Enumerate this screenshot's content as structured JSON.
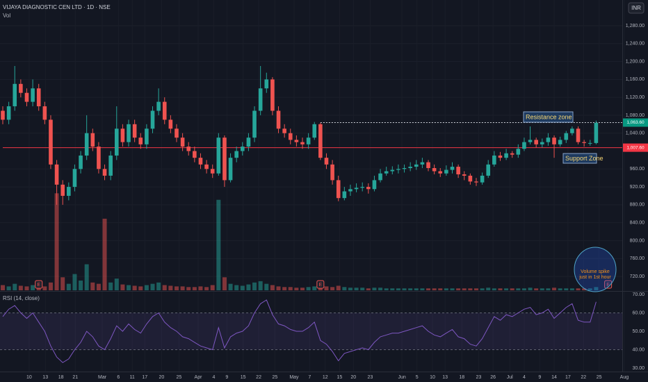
{
  "header": {
    "symbol": "VIJAYA DIAGNOSTIC CEN LTD · 1D · NSE",
    "volume_label": "Vol",
    "currency": "INR"
  },
  "chart_data": [
    {
      "type": "candlestick",
      "up_color": "#26a69a",
      "down_color": "#ef5350",
      "ylim": [
        720,
        1280
      ],
      "yticks": [
        {
          "value": 720,
          "label": "720.00"
        },
        {
          "value": 760,
          "label": "760.00"
        },
        {
          "value": 800,
          "label": "800.00"
        },
        {
          "value": 840,
          "label": "840.00"
        },
        {
          "value": 880,
          "label": "880.00"
        },
        {
          "value": 920,
          "label": "920.00"
        },
        {
          "value": 960,
          "label": "960.00"
        },
        {
          "value": 1040,
          "label": "1,040.00"
        },
        {
          "value": 1080,
          "label": "1,080.00"
        },
        {
          "value": 1120,
          "label": "1,120.00"
        },
        {
          "value": 1160,
          "label": "1,160.00"
        },
        {
          "value": 1200,
          "label": "1,200.00"
        },
        {
          "value": 1240,
          "label": "1,240.00"
        },
        {
          "value": 1280,
          "label": "1,280.00"
        }
      ],
      "xticks": [
        {
          "value": 4.4,
          "label": "10"
        },
        {
          "value": 7.1,
          "label": "13"
        },
        {
          "value": 9.7,
          "label": "18"
        },
        {
          "value": 12.1,
          "label": "21"
        },
        {
          "value": 16.6,
          "label": "Mar"
        },
        {
          "value": 19.3,
          "label": "6"
        },
        {
          "value": 21.6,
          "label": "11"
        },
        {
          "value": 23.7,
          "label": "17"
        },
        {
          "value": 26.5,
          "label": "20"
        },
        {
          "value": 29.4,
          "label": "25"
        },
        {
          "value": 32.6,
          "label": "Apr"
        },
        {
          "value": 35.2,
          "label": "4"
        },
        {
          "value": 37.4,
          "label": "9"
        },
        {
          "value": 40.1,
          "label": "15"
        },
        {
          "value": 42.7,
          "label": "22"
        },
        {
          "value": 45.4,
          "label": "25"
        },
        {
          "value": 48.6,
          "label": "May"
        },
        {
          "value": 51.2,
          "label": "7"
        },
        {
          "value": 53.8,
          "label": "12"
        },
        {
          "value": 56.2,
          "label": "15"
        },
        {
          "value": 58.5,
          "label": "20"
        },
        {
          "value": 61.3,
          "label": "23"
        },
        {
          "value": 66.6,
          "label": "Jun"
        },
        {
          "value": 69.1,
          "label": "5"
        },
        {
          "value": 71.7,
          "label": "10"
        },
        {
          "value": 73.8,
          "label": "13"
        },
        {
          "value": 76.6,
          "label": "18"
        },
        {
          "value": 79.4,
          "label": "23"
        },
        {
          "value": 81.8,
          "label": "26"
        },
        {
          "value": 84.6,
          "label": "Jul"
        },
        {
          "value": 87.0,
          "label": "4"
        },
        {
          "value": 89.6,
          "label": "9"
        },
        {
          "value": 92.0,
          "label": "14"
        },
        {
          "value": 94.3,
          "label": "17"
        },
        {
          "value": 96.9,
          "label": "22"
        },
        {
          "value": 99.5,
          "label": "25"
        },
        {
          "value": 103.7,
          "label": "Aug"
        }
      ],
      "ohlc": [
        [
          1090,
          1100,
          1060,
          1070
        ],
        [
          1070,
          1110,
          1060,
          1100
        ],
        [
          1100,
          1190,
          1090,
          1150
        ],
        [
          1150,
          1160,
          1120,
          1130
        ],
        [
          1130,
          1140,
          1100,
          1110
        ],
        [
          1110,
          1160,
          1100,
          1140
        ],
        [
          1140,
          1150,
          1090,
          1100
        ],
        [
          1100,
          1110,
          1060,
          1070
        ],
        [
          1070,
          1080,
          960,
          970
        ],
        [
          970,
          980,
          880,
          925
        ],
        [
          925,
          935,
          880,
          900
        ],
        [
          900,
          930,
          890,
          920
        ],
        [
          920,
          970,
          910,
          960
        ],
        [
          960,
          1000,
          950,
          990
        ],
        [
          990,
          1080,
          980,
          1040
        ],
        [
          1040,
          1050,
          1000,
          1010
        ],
        [
          1010,
          1020,
          950,
          960
        ],
        [
          960,
          970,
          935,
          945
        ],
        [
          945,
          1000,
          935,
          990
        ],
        [
          990,
          1100,
          980,
          1050
        ],
        [
          1050,
          1060,
          1010,
          1020
        ],
        [
          1020,
          1070,
          1010,
          1060
        ],
        [
          1060,
          1070,
          1020,
          1030
        ],
        [
          1030,
          1040,
          1005,
          1015
        ],
        [
          1015,
          1060,
          1005,
          1050
        ],
        [
          1050,
          1100,
          1040,
          1090
        ],
        [
          1090,
          1140,
          1080,
          1110
        ],
        [
          1110,
          1120,
          1060,
          1070
        ],
        [
          1070,
          1080,
          1040,
          1050
        ],
        [
          1050,
          1060,
          1020,
          1030
        ],
        [
          1030,
          1040,
          1000,
          1010
        ],
        [
          1010,
          1020,
          990,
          1000
        ],
        [
          1000,
          1010,
          975,
          985
        ],
        [
          985,
          995,
          960,
          970
        ],
        [
          970,
          980,
          950,
          960
        ],
        [
          960,
          970,
          940,
          950
        ],
        [
          950,
          1040,
          945,
          1030
        ],
        [
          1030,
          1035,
          920,
          935
        ],
        [
          935,
          995,
          930,
          985
        ],
        [
          985,
          1010,
          975,
          1000
        ],
        [
          1000,
          1020,
          990,
          1010
        ],
        [
          1010,
          1040,
          1000,
          1030
        ],
        [
          1030,
          1100,
          1020,
          1090
        ],
        [
          1090,
          1190,
          1080,
          1140
        ],
        [
          1140,
          1175,
          1130,
          1160
        ],
        [
          1160,
          1165,
          1080,
          1090
        ],
        [
          1090,
          1100,
          1040,
          1050
        ],
        [
          1050,
          1060,
          1030,
          1040
        ],
        [
          1040,
          1050,
          1015,
          1025
        ],
        [
          1025,
          1035,
          1010,
          1020
        ],
        [
          1020,
          1030,
          1005,
          1015
        ],
        [
          1015,
          1040,
          1005,
          1030
        ],
        [
          1030,
          1065,
          1025,
          1060
        ],
        [
          1060,
          1063,
          980,
          985
        ],
        [
          985,
          995,
          960,
          970
        ],
        [
          970,
          980,
          925,
          935
        ],
        [
          935,
          945,
          888,
          895
        ],
        [
          895,
          920,
          890,
          910
        ],
        [
          910,
          925,
          900,
          915
        ],
        [
          915,
          928,
          908,
          918
        ],
        [
          918,
          930,
          910,
          920
        ],
        [
          920,
          928,
          905,
          915
        ],
        [
          915,
          945,
          910,
          935
        ],
        [
          935,
          960,
          930,
          950
        ],
        [
          950,
          965,
          945,
          955
        ],
        [
          955,
          966,
          948,
          958
        ],
        [
          958,
          970,
          950,
          960
        ],
        [
          960,
          970,
          952,
          962
        ],
        [
          962,
          975,
          955,
          965
        ],
        [
          965,
          980,
          958,
          970
        ],
        [
          970,
          985,
          962,
          975
        ],
        [
          975,
          980,
          955,
          962
        ],
        [
          962,
          970,
          948,
          955
        ],
        [
          955,
          962,
          942,
          950
        ],
        [
          950,
          968,
          945,
          958
        ],
        [
          958,
          975,
          950,
          965
        ],
        [
          965,
          970,
          940,
          948
        ],
        [
          948,
          955,
          935,
          945
        ],
        [
          945,
          950,
          925,
          932
        ],
        [
          932,
          940,
          922,
          930
        ],
        [
          930,
          952,
          925,
          945
        ],
        [
          945,
          980,
          940,
          970
        ],
        [
          970,
          1000,
          965,
          990
        ],
        [
          990,
          998,
          978,
          985
        ],
        [
          985,
          1005,
          980,
          995
        ],
        [
          995,
          1000,
          985,
          992
        ],
        [
          992,
          1015,
          985,
          1005
        ],
        [
          1005,
          1030,
          1000,
          1020
        ],
        [
          1020,
          1055,
          1015,
          1025
        ],
        [
          1025,
          1030,
          1008,
          1015
        ],
        [
          1015,
          1028,
          1008,
          1020
        ],
        [
          1020,
          1040,
          1012,
          1030
        ],
        [
          1030,
          1035,
          985,
          1015
        ],
        [
          1015,
          1032,
          1010,
          1025
        ],
        [
          1025,
          1045,
          1018,
          1040
        ],
        [
          1040,
          1055,
          1035,
          1050
        ],
        [
          1050,
          1055,
          1015,
          1020
        ],
        [
          1020,
          1025,
          1010,
          1018
        ],
        [
          1018,
          1025,
          1012,
          1018
        ],
        [
          1018,
          1068,
          1015,
          1063
        ]
      ],
      "vlim": [
        0,
        160
      ],
      "volume": [
        8,
        6,
        10,
        7,
        6,
        8,
        7,
        6,
        12,
        149,
        20,
        10,
        25,
        15,
        40,
        12,
        10,
        110,
        12,
        18,
        9,
        8,
        7,
        6,
        8,
        10,
        12,
        8,
        7,
        6,
        6,
        5,
        5,
        6,
        5,
        8,
        139,
        20,
        10,
        8,
        7,
        9,
        12,
        14,
        10,
        8,
        6,
        5,
        5,
        4,
        4,
        5,
        6,
        8,
        6,
        5,
        7,
        5,
        4,
        4,
        4,
        3,
        4,
        4,
        3,
        3,
        3,
        3,
        3,
        3,
        3,
        3,
        3,
        3,
        3,
        3,
        3,
        3,
        3,
        3,
        3,
        4,
        3,
        3,
        3,
        3,
        3,
        3,
        4,
        3,
        3,
        3,
        4,
        3,
        3,
        3,
        3,
        3,
        3,
        5
      ],
      "levels": [
        {
          "value": 1007.6,
          "label": "1,007.60",
          "color": "#f23645",
          "from": 0
        },
        {
          "value": 1063.6,
          "label": "1,063.60",
          "color": "#089981",
          "from": 53
        }
      ],
      "annotations": [
        "Resistance zone",
        "Support Zone",
        "Volume spike just in 1st hour"
      ],
      "events": [
        {
          "index": 6,
          "label": "E"
        },
        {
          "index": 53,
          "label": "E"
        },
        {
          "index": 101,
          "label": "E"
        }
      ]
    },
    {
      "type": "line",
      "title": "RSI (14, close)",
      "color": "#7e57c2",
      "ylim": [
        30,
        70
      ],
      "band": [
        40,
        60
      ],
      "yticks": [
        {
          "value": 30,
          "label": "30.00"
        },
        {
          "value": 40,
          "label": "40.00"
        },
        {
          "value": 50,
          "label": "50.00"
        },
        {
          "value": 60,
          "label": "60.00"
        },
        {
          "value": 70,
          "label": "70.00"
        }
      ],
      "values": [
        58,
        62,
        64,
        60,
        57,
        60,
        55,
        50,
        42,
        36,
        33,
        35,
        40,
        44,
        50,
        47,
        42,
        40,
        46,
        53,
        50,
        54,
        51,
        49,
        54,
        58,
        60,
        55,
        52,
        50,
        47,
        46,
        44,
        42,
        41,
        40,
        52,
        41,
        47,
        49,
        50,
        53,
        60,
        65,
        67,
        59,
        54,
        53,
        51,
        50,
        50,
        52,
        55,
        45,
        43,
        39,
        34,
        38,
        39,
        40,
        41,
        40,
        44,
        47,
        48,
        49,
        49,
        50,
        51,
        52,
        53,
        50,
        48,
        47,
        49,
        51,
        47,
        46,
        43,
        42,
        46,
        52,
        58,
        56,
        59,
        58,
        60,
        62,
        63,
        59,
        60,
        62,
        57,
        60,
        63,
        65,
        56,
        55,
        55,
        66
      ]
    }
  ]
}
